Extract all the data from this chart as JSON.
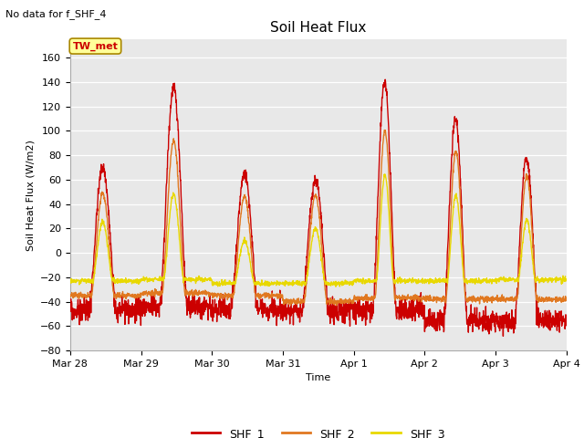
{
  "title": "Soil Heat Flux",
  "subtitle": "No data for f_SHF_4",
  "ylabel": "Soil Heat Flux (W/m2)",
  "xlabel": "Time",
  "ylim": [
    -80,
    175
  ],
  "yticks": [
    -80,
    -60,
    -40,
    -20,
    0,
    20,
    40,
    60,
    80,
    100,
    120,
    140,
    160
  ],
  "bg_color": "#e8e8e8",
  "legend_label": "TW_met",
  "series_colors": {
    "SHF_1": "#cc0000",
    "SHF_2": "#e07820",
    "SHF_3": "#e8d800"
  },
  "xtick_labels": [
    "Mar 28",
    "Mar 29",
    "Mar 30",
    "Mar 31",
    "Apr 1",
    "Apr 2",
    "Apr 3",
    "Apr 4"
  ],
  "shf1_amps": [
    70,
    135,
    65,
    60,
    140,
    110,
    78
  ],
  "shf1_nights": [
    -47,
    -44,
    -47,
    -48,
    -47,
    -56,
    -56
  ],
  "shf1_rise": [
    0.27,
    0.27,
    0.27,
    0.27,
    0.27,
    0.27,
    0.27
  ],
  "shf1_set": [
    0.65,
    0.65,
    0.65,
    0.65,
    0.6,
    0.6,
    0.6
  ],
  "shf2_amps": [
    49,
    92,
    46,
    47,
    100,
    83,
    63
  ],
  "shf2_nights": [
    -35,
    -33,
    -35,
    -40,
    -37,
    -38,
    -38
  ],
  "shf2_rise": [
    0.3,
    0.3,
    0.3,
    0.3,
    0.3,
    0.3,
    0.3
  ],
  "shf2_set": [
    0.62,
    0.62,
    0.62,
    0.62,
    0.58,
    0.58,
    0.58
  ],
  "shf3_amps": [
    25,
    48,
    10,
    20,
    64,
    47,
    27
  ],
  "shf3_nights": [
    -23,
    -22,
    -25,
    -25,
    -23,
    -23,
    -22
  ],
  "shf3_rise": [
    0.32,
    0.32,
    0.32,
    0.32,
    0.32,
    0.32,
    0.32
  ],
  "shf3_set": [
    0.6,
    0.6,
    0.6,
    0.6,
    0.56,
    0.56,
    0.56
  ],
  "n_points": 2000
}
